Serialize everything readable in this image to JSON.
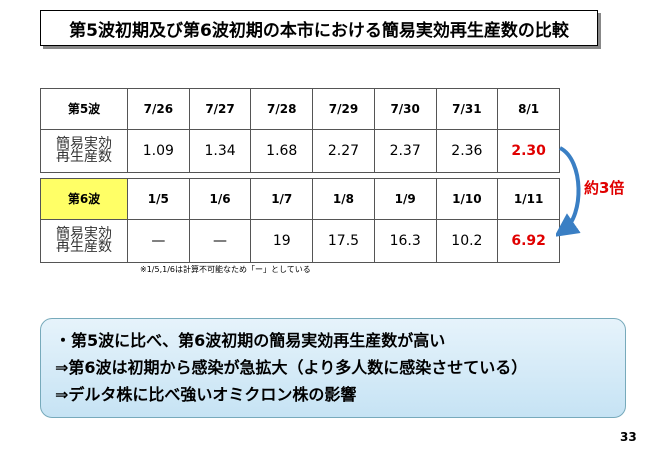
{
  "header": {
    "title": "第5波初期及び第6波初期の本市における簡易実効再生産数の比較"
  },
  "tables": [
    {
      "header": [
        "第5波",
        "7/26",
        "7/27",
        "7/28",
        "7/29",
        "7/30",
        "7/31",
        "8/1"
      ],
      "row_label": [
        "簡易実効",
        "再生産数"
      ],
      "values": [
        "1.09",
        "1.34",
        "1.68",
        "2.27",
        "2.37",
        "2.36",
        "2.30"
      ]
    },
    {
      "header": [
        "第6波",
        "1/5",
        "1/6",
        "1/7",
        "1/8",
        "1/9",
        "1/10",
        "1/11"
      ],
      "row_label": [
        "簡易実効",
        "再生産数"
      ],
      "values": [
        "—",
        "—",
        "19",
        "17.5",
        "16.3",
        "10.2",
        "6.92"
      ]
    }
  ],
  "note": "※1/5,1/6は計算不可能なため「ー」としている",
  "ratio": "約3倍",
  "summary": [
    "・第5波に比べ、第6波初期の簡易実効再生産数が高い",
    "⇒第6波は初期から感染が急拡大（より多人数に感染させている）",
    "⇒デルタ株に比べ強いオミクロン株の影響"
  ],
  "page_number": "33"
}
